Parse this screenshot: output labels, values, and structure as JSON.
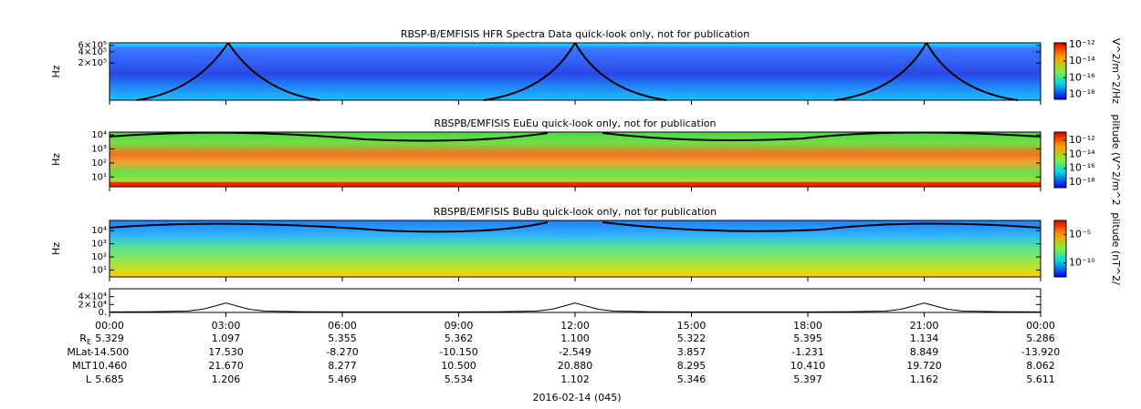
{
  "chart_data": [
    {
      "type": "spectrogram",
      "title": "RBSP-B/EMFISIS  HFR Spectra Data quick-look only, not for publication",
      "ylabel": "Hz",
      "log_scale": true,
      "ylim": [
        20000,
        700000
      ],
      "yticks": [
        {
          "value": 200000,
          "label": "2×10⁵"
        },
        {
          "value": 400000,
          "label": "4×10⁵"
        },
        {
          "value": 600000,
          "label": "6×10⁵"
        }
      ],
      "colorbar": {
        "label": "V^2/m^2/Hz",
        "lim": [
          -18.6,
          -11.8
        ],
        "ticks": [
          {
            "value": -12,
            "label": "10⁻¹²"
          },
          {
            "value": -14,
            "label": "10⁻¹⁴"
          },
          {
            "value": -16,
            "label": "10⁻¹⁶"
          },
          {
            "value": -18,
            "label": "10⁻¹⁸"
          }
        ]
      }
    },
    {
      "type": "spectrogram",
      "title": "RBSPB/EMFISIS  EuEu quick-look only, not for publication",
      "ylabel": "Hz",
      "log_scale": true,
      "ylim": [
        2,
        16000
      ],
      "yticks": [
        {
          "value": 10,
          "label": "10¹"
        },
        {
          "value": 100,
          "label": "10²"
        },
        {
          "value": 1000,
          "label": "10³"
        },
        {
          "value": 10000,
          "label": "10⁴"
        }
      ],
      "colorbar": {
        "label": "plitude (V^2/m^2",
        "lim": [
          -18.8,
          -10.8
        ],
        "ticks": [
          {
            "value": -12,
            "label": "10⁻¹²"
          },
          {
            "value": -14,
            "label": "10⁻¹⁴"
          },
          {
            "value": -16,
            "label": "10⁻¹⁶"
          },
          {
            "value": -18,
            "label": "10⁻¹⁸"
          }
        ]
      }
    },
    {
      "type": "spectrogram",
      "title": "RBSPB/EMFISIS  BuBu quick-look only, not for publication",
      "ylabel": "Hz",
      "log_scale": true,
      "ylim": [
        3,
        60000
      ],
      "yticks": [
        {
          "value": 10,
          "label": "10¹"
        },
        {
          "value": 100,
          "label": "10²"
        },
        {
          "value": 1000,
          "label": "10³"
        },
        {
          "value": 10000,
          "label": "10⁴"
        }
      ],
      "colorbar": {
        "label": "plitude (nT^2/",
        "lim": [
          -12.5,
          -2.5
        ],
        "ticks": [
          {
            "value": -5,
            "label": "10⁻⁵"
          },
          {
            "value": -10,
            "label": "10⁻¹⁰"
          }
        ]
      }
    },
    {
      "type": "line",
      "color": "#000000",
      "xlim": [
        0,
        24
      ],
      "xticks": [
        {
          "value": 0,
          "label": "00:00"
        },
        {
          "value": 3,
          "label": "03:00"
        },
        {
          "value": 6,
          "label": "06:00"
        },
        {
          "value": 9,
          "label": "09:00"
        },
        {
          "value": 12,
          "label": "12:00"
        },
        {
          "value": 15,
          "label": "15:00"
        },
        {
          "value": 18,
          "label": "18:00"
        },
        {
          "value": 21,
          "label": "21:00"
        },
        {
          "value": 24,
          "label": "00:00"
        }
      ],
      "ylim": [
        0,
        60000
      ],
      "yticks": [
        {
          "value": 0,
          "label": "0."
        },
        {
          "value": 20000,
          "label": "2×10⁴"
        },
        {
          "value": 40000,
          "label": "4×10⁴"
        }
      ],
      "x": [
        0,
        1,
        2,
        2.4,
        2.7,
        3,
        3.3,
        3.6,
        4,
        5,
        6,
        7,
        8,
        9,
        10,
        11,
        11.4,
        11.7,
        12,
        12.3,
        12.6,
        13,
        14,
        15,
        16,
        17,
        18,
        19,
        20,
        20.4,
        20.7,
        21,
        21.3,
        21.6,
        22,
        23,
        24
      ],
      "values": [
        1500,
        1800,
        3500,
        8000,
        16000,
        24000,
        16000,
        8000,
        3500,
        1800,
        1500,
        1500,
        1500,
        1500,
        1800,
        3500,
        8000,
        16000,
        24000,
        16000,
        8000,
        3500,
        1800,
        1500,
        1500,
        1500,
        1500,
        1800,
        3500,
        8000,
        16000,
        24000,
        16000,
        8000,
        3500,
        1800,
        1500
      ]
    }
  ],
  "ephemeris": {
    "rows": [
      {
        "label": {
          "main": "R",
          "sub": "E"
        },
        "values": [
          "5.329",
          "1.097",
          "5.355",
          "5.362",
          "1.100",
          "5.322",
          "5.395",
          "1.134",
          "5.286"
        ]
      },
      {
        "label": {
          "main": "MLat"
        },
        "values": [
          "-14.500",
          "17.530",
          "-8.270",
          "-10.150",
          "-2.549",
          "3.857",
          "-1.231",
          "8.849",
          "-13.920"
        ]
      },
      {
        "label": {
          "main": "MLT"
        },
        "values": [
          "10.460",
          "21.670",
          "8.277",
          "10.500",
          "20.880",
          "8.295",
          "10.410",
          "19.720",
          "8.062"
        ]
      },
      {
        "label": {
          "main": "L"
        },
        "values": [
          "5.685",
          "1.206",
          "5.469",
          "5.534",
          "1.102",
          "5.346",
          "5.397",
          "1.162",
          "5.611"
        ]
      }
    ]
  },
  "date": "2016-02-14 (045)"
}
